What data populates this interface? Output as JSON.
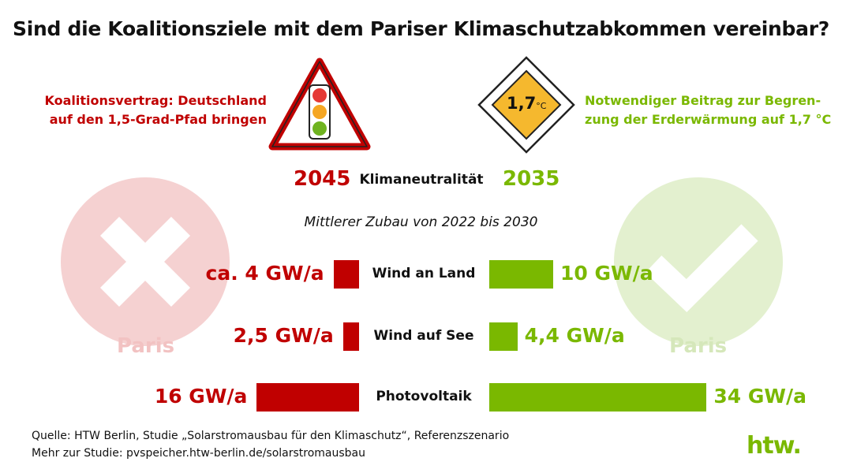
{
  "title": "Sind die Koalitionsziele mit dem Pariser Klimaschutzabkommen vereinbar?",
  "left_goal": {
    "line1": "Koalitionsvertrag: Deutschland",
    "line2": "auf den 1,5-Grad-Pfad bringen",
    "color": "#c00000"
  },
  "right_goal": {
    "line1": "Notwendiger Beitrag zur Begren-",
    "line2": "zung der Erderwärmung auf 1,7 °C",
    "color": "#7ab800"
  },
  "sign": {
    "value": "1,7",
    "unit": "°C",
    "traffic_light_icon": "traffic-light-warning-icon",
    "diamond_icon": "priority-road-sign-icon"
  },
  "neutrality": {
    "label": "Klimaneutralität",
    "left_year": "2045",
    "right_year": "2035"
  },
  "paris_left": "Paris",
  "paris_right": "Paris",
  "chart_data": {
    "type": "bar",
    "title": "Mittlerer Zubau von 2022 bis 2030",
    "categories": [
      "Wind an Land",
      "Wind auf See",
      "Photovoltaik"
    ],
    "series": [
      {
        "name": "Koalitionsvertrag",
        "values": [
          4,
          2.5,
          16
        ],
        "labels": [
          "ca. 4 GW/a",
          "2,5 GW/a",
          "16 GW/a"
        ],
        "color": "#c00000"
      },
      {
        "name": "Notwendiger Beitrag",
        "values": [
          10,
          4.4,
          34
        ],
        "labels": [
          "10 GW/a",
          "4,4 GW/a",
          "34 GW/a"
        ],
        "color": "#7ab800"
      }
    ],
    "unit": "GW/a"
  },
  "source": {
    "line1": "Quelle: HTW Berlin, Studie „Solarstromausbau für den Klimaschutz“, Referenzszenario",
    "line2": "Mehr zur Studie: pvspeicher.htw-berlin.de/solarstromausbau"
  },
  "logo": "htw."
}
